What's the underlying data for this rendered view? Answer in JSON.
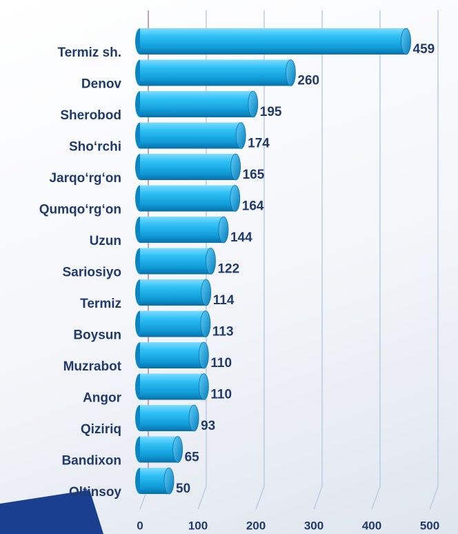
{
  "chart_data": {
    "type": "bar",
    "orientation": "horizontal",
    "categories": [
      "Termiz sh.",
      "Denov",
      "Sherobod",
      "Sho‘rchi",
      "Jarqo‘rg‘on",
      "Qumqo‘rg‘on",
      "Uzun",
      "Sariosiyo",
      "Termiz ",
      "Boysun",
      "Muzrabot",
      "Angor",
      "Qiziriq",
      "Bandixon",
      "Oltinsoy"
    ],
    "values": [
      459,
      260,
      195,
      174,
      165,
      164,
      144,
      122,
      114,
      113,
      110,
      110,
      93,
      65,
      50
    ],
    "color": "#1ab2ec",
    "xlim": [
      0,
      500
    ],
    "xticks": [
      0,
      100,
      200,
      300,
      400,
      500
    ],
    "grid": true
  }
}
